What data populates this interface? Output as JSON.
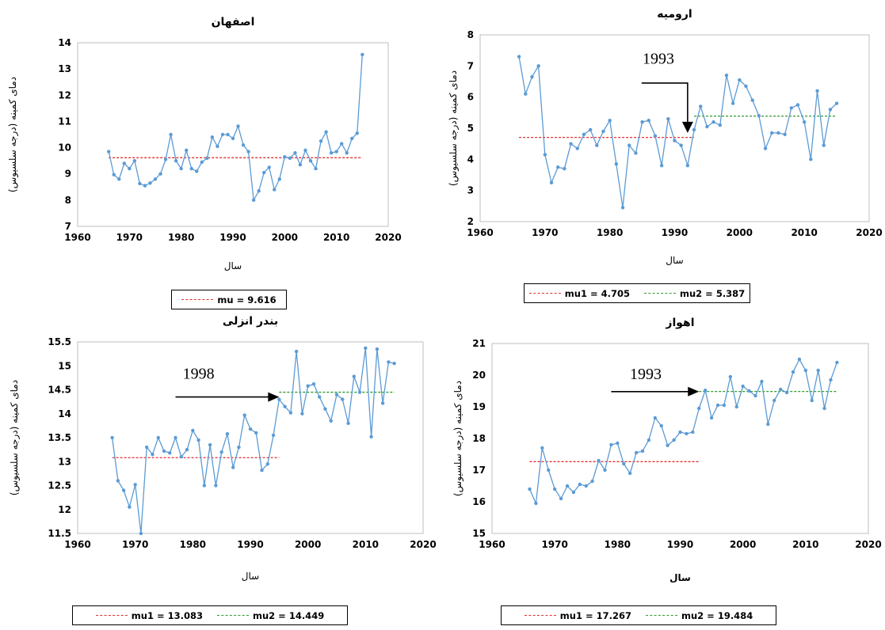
{
  "colors": {
    "series": "#5b9bd5",
    "mu1": "#e03030",
    "mu2": "#2e9a2e"
  },
  "chart_data": [
    {
      "type": "line",
      "title": "اصفهان",
      "xlabel": "سال",
      "ylabel": "دمای کمینه (درجه سلسیوس)",
      "xlim": [
        1960,
        2020
      ],
      "ylim": [
        7,
        14
      ],
      "xticks": [
        "1960",
        "1970",
        "1980",
        "1990",
        "2000",
        "2010",
        "2020"
      ],
      "yticks": [
        "7",
        "8",
        "9",
        "10",
        "11",
        "12",
        "13",
        "14"
      ],
      "x": [
        1966,
        1967,
        1968,
        1969,
        1970,
        1971,
        1972,
        1973,
        1974,
        1975,
        1976,
        1977,
        1978,
        1979,
        1980,
        1981,
        1982,
        1983,
        1984,
        1985,
        1986,
        1987,
        1988,
        1989,
        1990,
        1991,
        1992,
        1993,
        1994,
        1995,
        1996,
        1997,
        1998,
        1999,
        2000,
        2001,
        2002,
        2003,
        2004,
        2005,
        2006,
        2007,
        2008,
        2009,
        2010,
        2011,
        2012,
        2013,
        2014,
        2015
      ],
      "values": [
        9.85,
        8.97,
        8.8,
        9.4,
        9.2,
        9.5,
        8.63,
        8.55,
        8.65,
        8.8,
        9.0,
        9.55,
        10.5,
        9.5,
        9.2,
        9.9,
        9.2,
        9.1,
        9.45,
        9.6,
        10.4,
        10.05,
        10.5,
        10.5,
        10.35,
        10.82,
        10.1,
        9.85,
        8.0,
        8.35,
        9.05,
        9.25,
        8.4,
        8.8,
        9.65,
        9.6,
        9.8,
        9.35,
        9.9,
        9.5,
        9.2,
        10.25,
        10.6,
        9.8,
        9.85,
        10.15,
        9.8,
        10.35,
        10.55,
        13.55
      ],
      "lines": [
        {
          "value": 9.616,
          "from": 1966,
          "to": 2015,
          "kind": "mu1"
        }
      ],
      "legend": [
        {
          "kind": "mu1",
          "label": "mu = 9.616"
        }
      ]
    },
    {
      "type": "line",
      "title": "ارومیه",
      "xlabel": "سال",
      "ylabel": "دمای کمینه (درجه سلسیوس)",
      "xlim": [
        1960,
        2020
      ],
      "ylim": [
        2,
        8
      ],
      "xticks": [
        "1960",
        "1970",
        "1980",
        "1990",
        "2000",
        "2010",
        "2020"
      ],
      "yticks": [
        "2",
        "3",
        "4",
        "5",
        "6",
        "7",
        "8"
      ],
      "x": [
        1966,
        1967,
        1968,
        1969,
        1970,
        1971,
        1972,
        1973,
        1974,
        1975,
        1976,
        1977,
        1978,
        1979,
        1980,
        1981,
        1982,
        1983,
        1984,
        1985,
        1986,
        1987,
        1988,
        1989,
        1990,
        1991,
        1992,
        1993,
        1994,
        1995,
        1996,
        1997,
        1998,
        1999,
        2000,
        2001,
        2002,
        2003,
        2004,
        2005,
        2006,
        2007,
        2008,
        2009,
        2010,
        2011,
        2012,
        2013,
        2014,
        2015
      ],
      "values": [
        7.3,
        6.1,
        6.65,
        7.0,
        4.15,
        3.25,
        3.75,
        3.7,
        4.5,
        4.35,
        4.8,
        4.95,
        4.45,
        4.9,
        5.25,
        3.85,
        2.45,
        4.45,
        4.2,
        5.2,
        5.25,
        4.75,
        3.8,
        5.3,
        4.6,
        4.45,
        3.8,
        4.95,
        5.7,
        5.05,
        5.2,
        5.1,
        6.7,
        5.8,
        6.55,
        6.35,
        5.9,
        5.4,
        4.35,
        4.85,
        4.85,
        4.8,
        5.65,
        5.75,
        5.2,
        4.0,
        6.2,
        4.45,
        5.6,
        5.8
      ],
      "lines": [
        {
          "value": 4.705,
          "from": 1966,
          "to": 1993,
          "kind": "mu1"
        },
        {
          "value": 5.387,
          "from": 1993,
          "to": 2015,
          "kind": "mu2"
        }
      ],
      "annotation": {
        "text": "1993",
        "arrow_x": 1992,
        "arrow_y_from": 6.45,
        "arrow_y_to": 4.85,
        "direction": "down",
        "label_x": 1987.5,
        "label_y": 7.25
      },
      "legend": [
        {
          "kind": "mu1",
          "label": "mu1 = 4.705"
        },
        {
          "kind": "mu2",
          "label": "mu2 = 5.387"
        }
      ]
    },
    {
      "type": "line",
      "title": "بندر انزلی",
      "xlabel": "سال",
      "ylabel": "دمای کمینه (درجه سلسیوس)",
      "xlim": [
        1960,
        2020
      ],
      "ylim": [
        11.5,
        15.5
      ],
      "xticks": [
        "1960",
        "1970",
        "1980",
        "1990",
        "2000",
        "2010",
        "2020"
      ],
      "yticks": [
        "11.5",
        "12",
        "12.5",
        "13",
        "13.5",
        "14",
        "14.5",
        "15",
        "15.5"
      ],
      "x": [
        1966,
        1967,
        1968,
        1969,
        1970,
        1971,
        1972,
        1973,
        1974,
        1975,
        1976,
        1977,
        1978,
        1979,
        1980,
        1981,
        1982,
        1983,
        1984,
        1985,
        1986,
        1987,
        1988,
        1989,
        1990,
        1991,
        1992,
        1993,
        1994,
        1995,
        1996,
        1997,
        1998,
        1999,
        2000,
        2001,
        2002,
        2003,
        2004,
        2005,
        2006,
        2007,
        2008,
        2009,
        2010,
        2011,
        2012,
        2013,
        2014,
        2015
      ],
      "values": [
        13.5,
        12.6,
        12.4,
        12.05,
        12.52,
        11.5,
        13.3,
        13.15,
        13.5,
        13.22,
        13.18,
        13.5,
        13.1,
        13.25,
        13.65,
        13.45,
        12.5,
        13.35,
        12.5,
        13.2,
        13.58,
        12.88,
        13.3,
        13.97,
        13.68,
        13.6,
        12.82,
        12.95,
        13.55,
        14.3,
        14.15,
        14.02,
        15.3,
        14.0,
        14.58,
        14.62,
        14.35,
        14.1,
        13.85,
        14.4,
        14.3,
        13.8,
        14.78,
        14.45,
        15.37,
        13.52,
        15.35,
        14.22,
        15.08,
        15.05
      ],
      "lines": [
        {
          "value": 13.083,
          "from": 1966,
          "to": 1995,
          "kind": "mu1"
        },
        {
          "value": 14.449,
          "from": 1995,
          "to": 2015,
          "kind": "mu2"
        }
      ],
      "annotation": {
        "text": "1998",
        "arrow_x": 1995,
        "arrow_y": 14.35,
        "arrow_x_from": 1977,
        "direction": "right",
        "label_x": 1981,
        "label_y": 14.85
      },
      "legend": [
        {
          "kind": "mu1",
          "label": "mu1 = 13.083"
        },
        {
          "kind": "mu2",
          "label": "mu2 = 14.449"
        }
      ]
    },
    {
      "type": "line",
      "title": "اهواز",
      "xlabel": "سال",
      "ylabel": "دمای کمینه (درجه سلسیوس)",
      "xlim": [
        1960,
        2020
      ],
      "ylim": [
        15,
        21
      ],
      "xticks": [
        "1960",
        "1970",
        "1980",
        "1990",
        "2000",
        "2010",
        "2020"
      ],
      "yticks": [
        "15",
        "16",
        "17",
        "18",
        "19",
        "20",
        "21"
      ],
      "x": [
        1966,
        1967,
        1968,
        1969,
        1970,
        1971,
        1972,
        1973,
        1974,
        1975,
        1976,
        1977,
        1978,
        1979,
        1980,
        1981,
        1982,
        1983,
        1984,
        1985,
        1986,
        1987,
        1988,
        1989,
        1990,
        1991,
        1992,
        1993,
        1994,
        1995,
        1996,
        1997,
        1998,
        1999,
        2000,
        2001,
        2002,
        2003,
        2004,
        2005,
        2006,
        2007,
        2008,
        2009,
        2010,
        2011,
        2012,
        2013,
        2014,
        2015
      ],
      "values": [
        16.4,
        15.95,
        17.7,
        17.0,
        16.4,
        16.1,
        16.5,
        16.3,
        16.55,
        16.5,
        16.65,
        17.3,
        17.0,
        17.8,
        17.85,
        17.2,
        16.9,
        17.55,
        17.6,
        17.95,
        18.65,
        18.4,
        17.78,
        17.95,
        18.2,
        18.15,
        18.2,
        18.95,
        19.52,
        18.65,
        19.05,
        19.05,
        19.95,
        19.0,
        19.65,
        19.5,
        19.35,
        19.8,
        18.45,
        19.2,
        19.55,
        19.45,
        20.1,
        20.5,
        20.15,
        19.2,
        20.15,
        18.95,
        19.85,
        20.4
      ],
      "lines": [
        {
          "value": 17.267,
          "from": 1966,
          "to": 1993,
          "kind": "mu1"
        },
        {
          "value": 19.484,
          "from": 1993,
          "to": 2015,
          "kind": "mu2"
        }
      ],
      "annotation": {
        "text": "1993",
        "arrow_x": 1993,
        "arrow_y": 19.48,
        "arrow_x_from": 1979,
        "direction": "right",
        "label_x": 1984.5,
        "label_y": 20.05
      },
      "legend": [
        {
          "kind": "mu1",
          "label": "mu1 = 17.267"
        },
        {
          "kind": "mu2",
          "label": "mu2 = 19.484"
        }
      ]
    }
  ]
}
